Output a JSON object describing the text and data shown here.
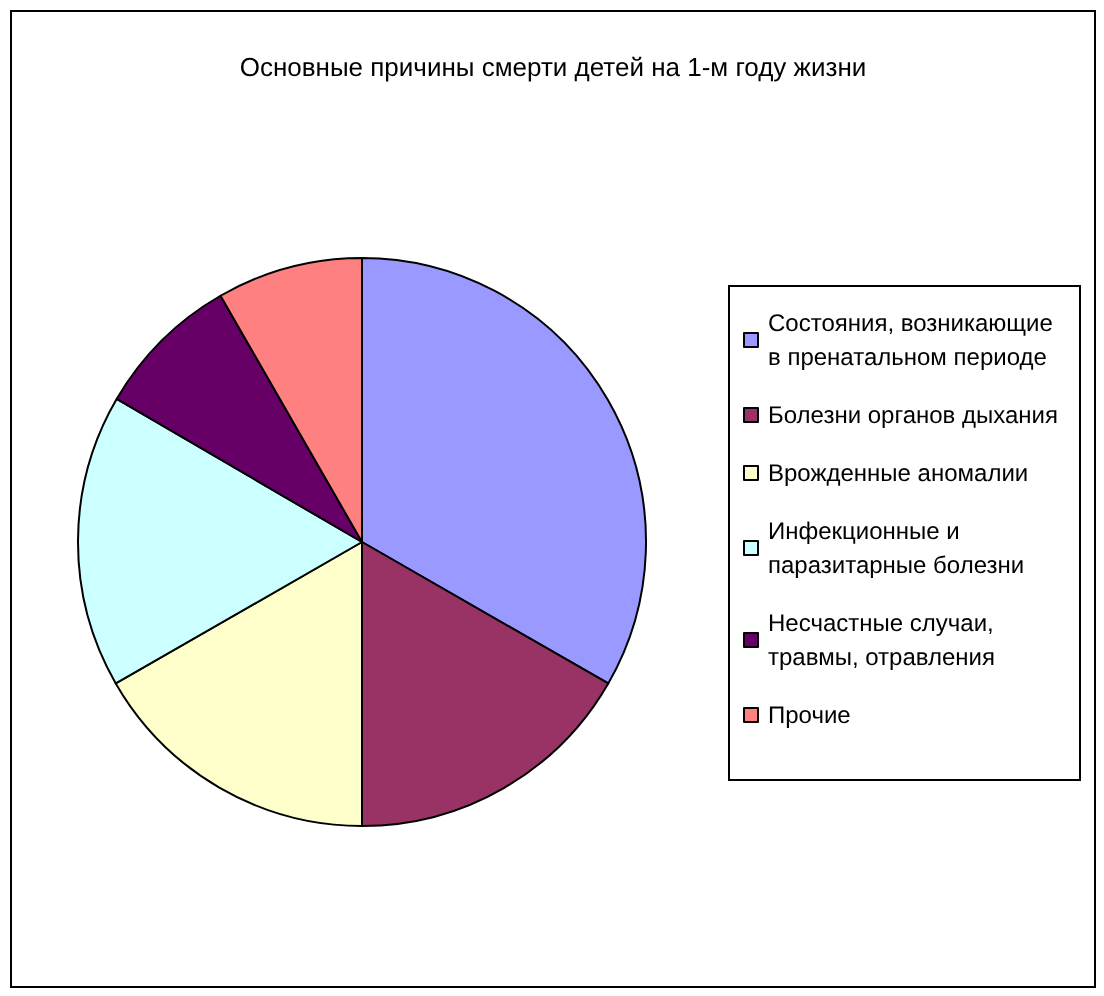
{
  "chart_data": {
    "type": "pie",
    "title": "Основные причины смерти детей на 1-м году жизни",
    "categories": [
      "Состояния, возникающие в пренатальном периоде",
      "Болезни органов дыхания",
      "Врожденные аномалии",
      "Инфекционные и паразитарные болезни",
      "Несчастные случаи, травмы, отравления",
      "Прочие"
    ],
    "values": [
      33.3,
      16.7,
      16.7,
      16.7,
      8.3,
      8.3
    ],
    "colors": [
      "#9999ff",
      "#993366",
      "#ffffcc",
      "#ccffff",
      "#660066",
      "#ff8080"
    ],
    "legend": "right"
  }
}
